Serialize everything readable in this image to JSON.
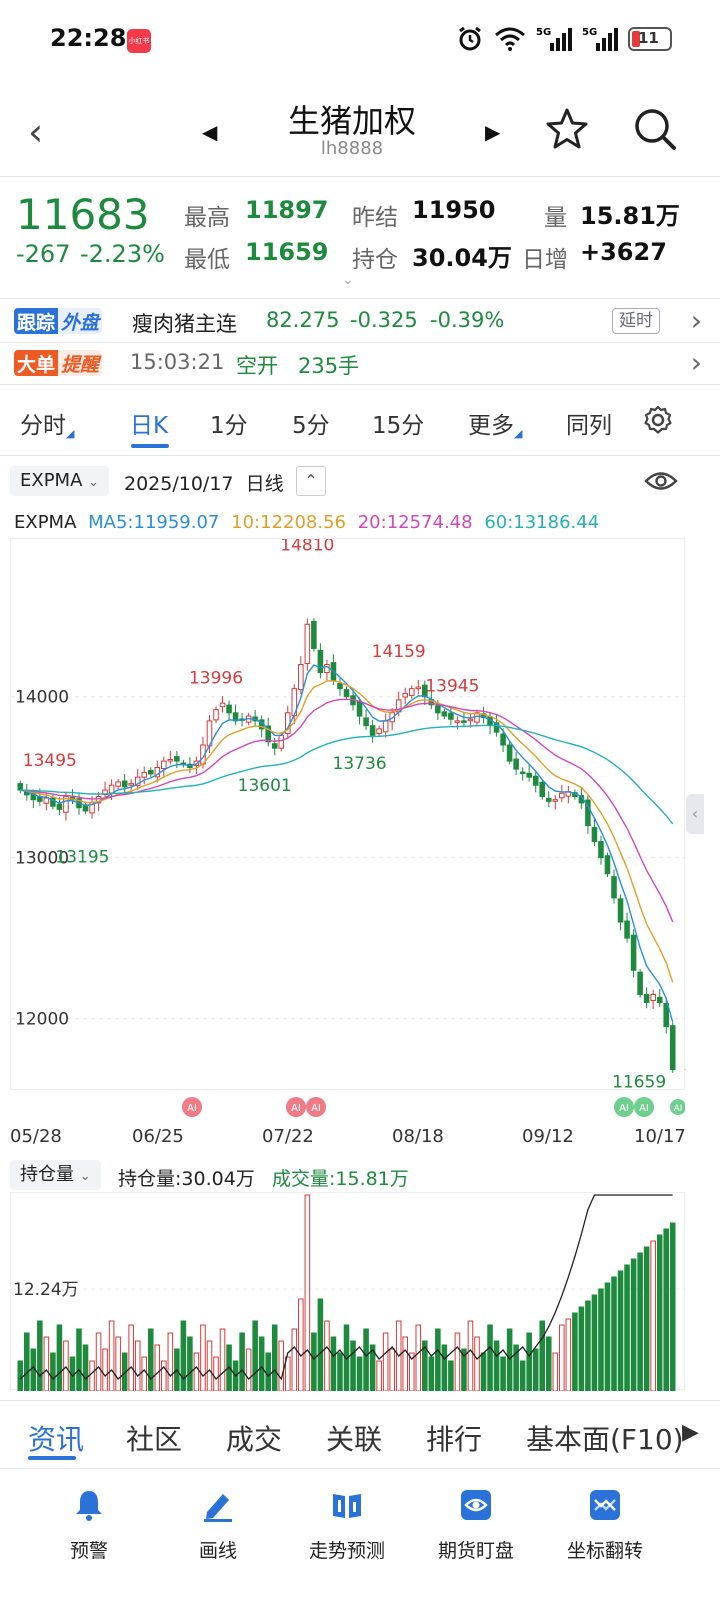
{
  "status": {
    "time": "22:28",
    "app_badge": "小红书",
    "battery": "11",
    "net1": "5G",
    "net2": "5G"
  },
  "header": {
    "title": "生猪加权",
    "subtitle": "lh8888"
  },
  "quote": {
    "price": "11683",
    "change": "-267",
    "change_pct": "-2.23%",
    "high_label": "最高",
    "high": "11897",
    "low_label": "最低",
    "low": "11659",
    "prev_settle_label": "昨结",
    "prev_settle": "11950",
    "open_int_label": "持仓",
    "open_int": "30.04万",
    "volume_label": "量",
    "volume": "15.81万",
    "daily_inc_label": "日增",
    "daily_inc": "+3627"
  },
  "track": {
    "tag_a": "跟踪",
    "tag_b": "外盘",
    "name": "瘦肉猪主连",
    "price": "82.275",
    "change": "-0.325",
    "pct": "-0.39%",
    "delay": "延时"
  },
  "bigorder": {
    "tag_a": "大单",
    "tag_b": "提醒",
    "time": "15:03:21",
    "action": "空开",
    "lots": "235手"
  },
  "tabs": [
    {
      "label": "分时"
    },
    {
      "label": "日K"
    },
    {
      "label": "1分"
    },
    {
      "label": "5分"
    },
    {
      "label": "15分"
    },
    {
      "label": "更多"
    },
    {
      "label": "同列"
    }
  ],
  "toolbar": {
    "indicator": "EXPMA",
    "date": "2025/10/17",
    "period": "日线"
  },
  "ma_legend": {
    "name": "EXPMA",
    "ma5": "MA5:11959.07",
    "ma10": "10:12208.56",
    "ma20": "20:12574.48",
    "ma60": "60:13186.44",
    "c5": "#2a8fd8",
    "c10": "#e0a028",
    "c20": "#d048b8",
    "c60": "#25b0b8"
  },
  "chart_data": {
    "type": "candlestick",
    "y_ticks": [
      "14000",
      "13000",
      "12000"
    ],
    "ylim": [
      11550,
      14980
    ],
    "annotations": [
      {
        "text": "14810",
        "color": "red"
      },
      {
        "text": "13996",
        "color": "red"
      },
      {
        "text": "14159",
        "color": "red"
      },
      {
        "text": "13945",
        "color": "red"
      },
      {
        "text": "13495",
        "color": "red"
      },
      {
        "text": "13601",
        "color": "green"
      },
      {
        "text": "13736",
        "color": "green"
      },
      {
        "text": "13195",
        "color": "green"
      },
      {
        "text": "11659",
        "color": "green"
      }
    ],
    "x_labels": [
      "05/28",
      "06/25",
      "07/22",
      "08/18",
      "09/12",
      "10/17"
    ],
    "closes": [
      13420,
      13390,
      13360,
      13350,
      13370,
      13320,
      13300,
      13380,
      13360,
      13310,
      13290,
      13340,
      13380,
      13420,
      13450,
      13470,
      13440,
      13460,
      13500,
      13530,
      13520,
      13560,
      13600,
      13610,
      13600,
      13580,
      13560,
      13600,
      13700,
      13850,
      13920,
      13960,
      13900,
      13850,
      13860,
      13880,
      13850,
      13800,
      13720,
      13680,
      13760,
      13900,
      14050,
      14200,
      14450,
      14300,
      14150,
      14200,
      14100,
      14050,
      14000,
      13950,
      13880,
      13820,
      13760,
      13800,
      13850,
      13900,
      13980,
      14020,
      14050,
      14060,
      14000,
      13950,
      13900,
      13880,
      13860,
      13850,
      13840,
      13860,
      13900,
      13870,
      13820,
      13780,
      13700,
      13600,
      13550,
      13530,
      13500,
      13450,
      13380,
      13350,
      13360,
      13400,
      13410,
      13380,
      13340,
      13200,
      13100,
      13000,
      12900,
      12750,
      12600,
      12500,
      12300,
      12150,
      12100,
      12150,
      12100,
      11950,
      11683
    ],
    "volume_label": "12.24万",
    "pos_indicator": "持仓量",
    "pos_value": "持仓量:30.04万",
    "vol_value": "成交量:15.81万"
  },
  "bottom_tabs": [
    "资讯",
    "社区",
    "成交",
    "关联",
    "排行",
    "基本面(F10)"
  ],
  "dock": [
    {
      "label": "预警"
    },
    {
      "label": "画线"
    },
    {
      "label": "走势预测"
    },
    {
      "label": "期货盯盘"
    },
    {
      "label": "坐标翻转"
    }
  ]
}
